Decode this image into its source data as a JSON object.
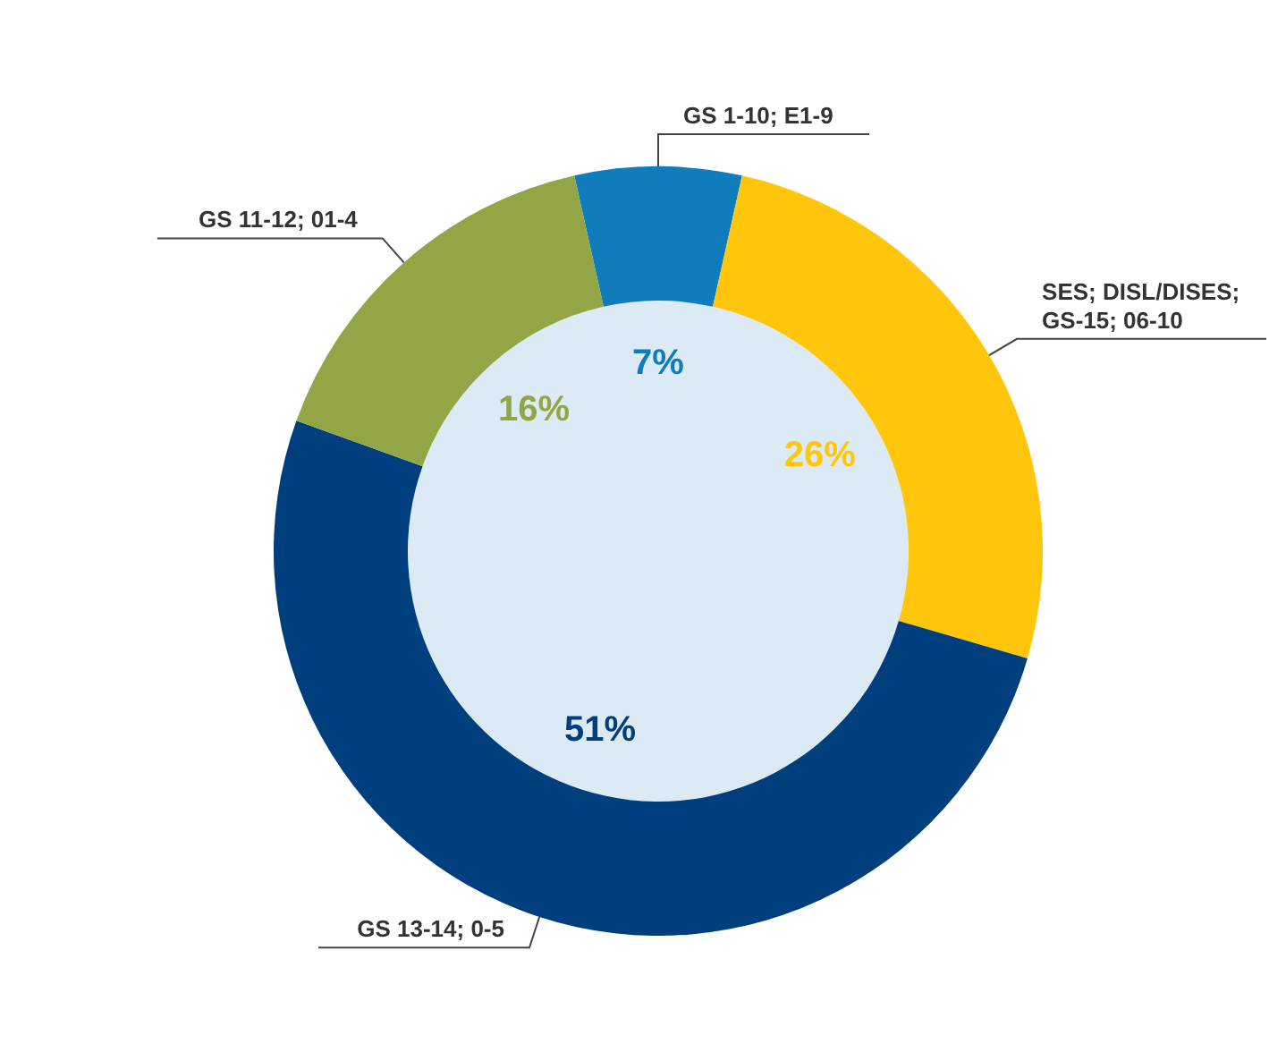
{
  "chart_data": {
    "type": "donut",
    "categories": [
      "GS 1-10; E1-9",
      "SES; DISL/DISES; GS-15; 06-10",
      "GS 13-14; 0-5",
      "GS 11-12; 01-4"
    ],
    "values": [
      7,
      26,
      51,
      16
    ],
    "colors": [
      "#0f7dbb",
      "#ffc60b",
      "#003f7d",
      "#93a645"
    ],
    "value_labels": [
      "7%",
      "26%",
      "51%",
      "16%"
    ],
    "legend": false
  }
}
